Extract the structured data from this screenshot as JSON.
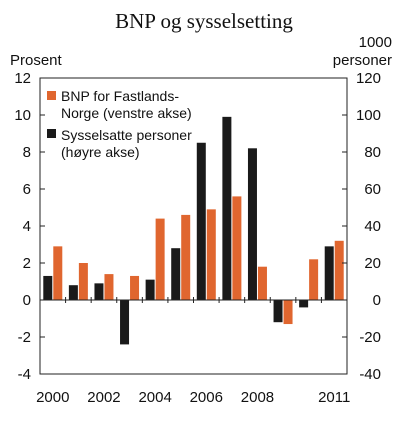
{
  "chart_data": {
    "type": "bar",
    "title": "BNP og sysselsetting",
    "left_axis_label": "Prosent",
    "right_axis_label_line1": "1000",
    "right_axis_label_line2": "personer",
    "left_ylim": [
      -4,
      12
    ],
    "right_ylim": [
      -40,
      120
    ],
    "left_ticks": [
      "12",
      "10",
      "8",
      "6",
      "4",
      "2",
      "0",
      "-2",
      "-4"
    ],
    "right_ticks": [
      "120",
      "100",
      "80",
      "60",
      "40",
      "20",
      "0",
      "-20",
      "-40"
    ],
    "x_tick_labels": [
      "2000",
      "2002",
      "2004",
      "2006",
      "2008",
      "2011"
    ],
    "x_tick_years": [
      2000,
      2002,
      2004,
      2006,
      2008,
      2011
    ],
    "years": [
      2000,
      2001,
      2002,
      2003,
      2004,
      2005,
      2006,
      2007,
      2008,
      2009,
      2010,
      2011
    ],
    "legend": {
      "placement": "top-left",
      "bnp_line1": "BNP for Fastlands-",
      "bnp_line2": "Norge (venstre akse)",
      "sys_line1": "Sysselsatte personer",
      "sys_line2": "(høyre akse)"
    },
    "series": [
      {
        "name": "BNP for Fastlands-Norge (venstre akse)",
        "axis": "left",
        "color": "#E0662F",
        "values": [
          2.9,
          2.0,
          1.4,
          1.3,
          4.4,
          4.6,
          4.9,
          5.6,
          1.8,
          -1.3,
          2.2,
          3.2
        ]
      },
      {
        "name": "Sysselsatte personer (høyre akse)",
        "axis": "right",
        "color": "#1a1a1a",
        "values": [
          13,
          8,
          9,
          -24,
          11,
          28,
          85,
          99,
          82,
          -12,
          -4,
          29
        ]
      }
    ]
  }
}
